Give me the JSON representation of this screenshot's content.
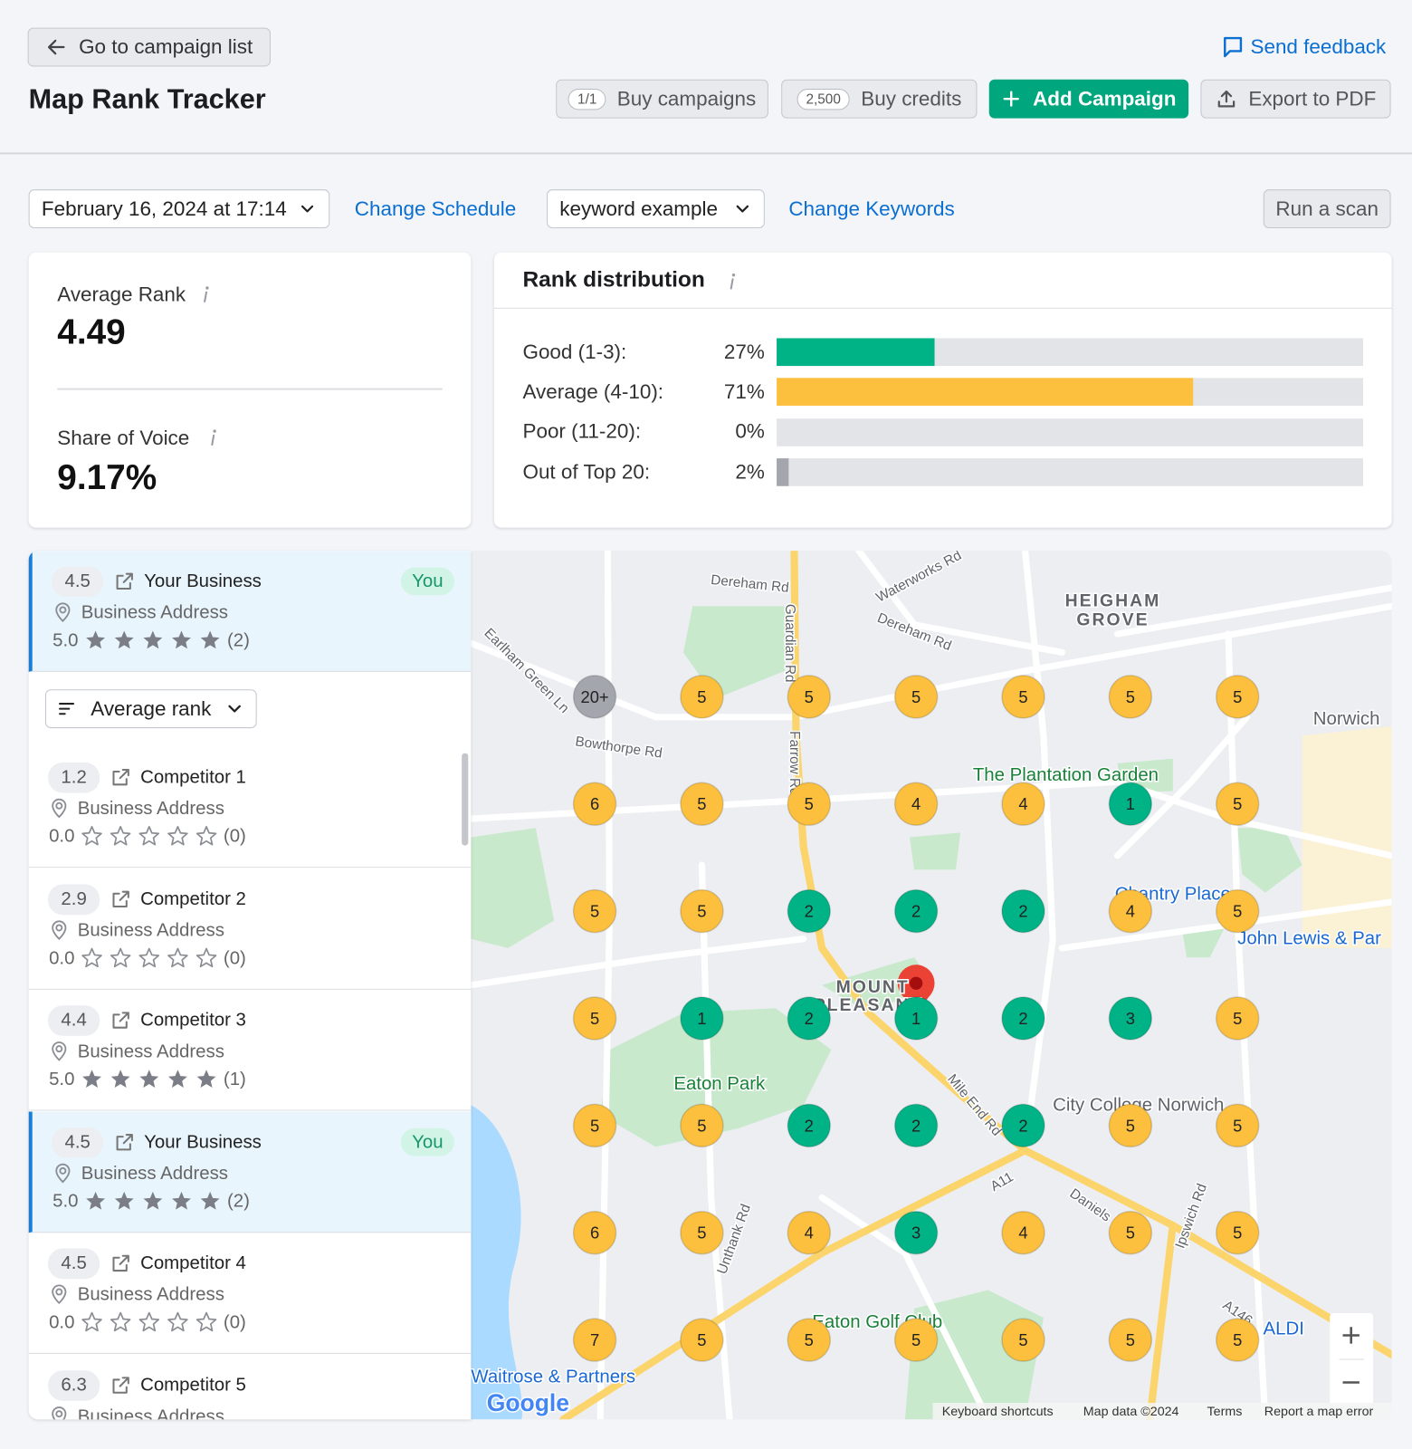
{
  "header": {
    "back_button": "Go to campaign list",
    "title": "Map Rank Tracker",
    "feedback": "Send feedback",
    "buttons": [
      {
        "badge": "1/1",
        "label": "Buy campaigns"
      },
      {
        "badge": "2,500",
        "label": "Buy credits"
      },
      {
        "label": "Add Campaign"
      },
      {
        "label": "Export to PDF"
      }
    ]
  },
  "toolbar": {
    "date": "February 16, 2024 at 17:14",
    "change_schedule": "Change Schedule",
    "keyword": "keyword example",
    "change_keywords": "Change Keywords",
    "run_scan": "Run a scan"
  },
  "summary": {
    "average_rank_label": "Average Rank",
    "average_rank": "4.49",
    "share_of_voice_label": "Share of Voice",
    "share_of_voice": "9.17%"
  },
  "rank_distribution": {
    "title": "Rank distribution",
    "xlim": [
      0,
      100
    ],
    "rows": [
      {
        "label": "Good (1-3):",
        "value": 27,
        "value_label": "27%",
        "color": "#00b386"
      },
      {
        "label": "Average (4-10):",
        "value": 71,
        "value_label": "71%",
        "color": "#fcc03e"
      },
      {
        "label": "Poor (11-20):",
        "value": 0,
        "value_label": "0%",
        "color": "#c9cbd0"
      },
      {
        "label": "Out of Top 20:",
        "value": 2,
        "value_label": "2%",
        "color": "#a3a6ad"
      }
    ]
  },
  "businesses": {
    "sort": "Average rank",
    "items": [
      {
        "rank": "4.5",
        "name": "Your Business",
        "you": "You",
        "address": "Business Address",
        "rating": "5.0",
        "reviews": "(2)"
      },
      {
        "rank": "1.2",
        "name": "Competitor 1",
        "address": "Business Address",
        "rating": "0.0",
        "reviews": "(0)"
      },
      {
        "rank": "2.9",
        "name": "Competitor 2",
        "address": "Business Address",
        "rating": "0.0",
        "reviews": "(0)"
      },
      {
        "rank": "4.4",
        "name": "Competitor 3",
        "address": "Business Address",
        "rating": "5.0",
        "reviews": "(1)"
      },
      {
        "rank": "4.5",
        "name": "Your Business",
        "you": "You",
        "address": "Business Address",
        "rating": "5.0",
        "reviews": "(2)"
      },
      {
        "rank": "4.5",
        "name": "Competitor 4",
        "address": "Business Address",
        "rating": "0.0",
        "reviews": "(0)"
      },
      {
        "rank": "6.3",
        "name": "Competitor 5",
        "address": "Business Address"
      }
    ]
  },
  "map": {
    "grid": [
      [
        "20+",
        "5",
        "5",
        "5",
        "5",
        "5",
        "5"
      ],
      [
        "6",
        "5",
        "5",
        "4",
        "4",
        "1",
        "5"
      ],
      [
        "5",
        "5",
        "2",
        "2",
        "2",
        "4",
        "5"
      ],
      [
        "5",
        "1",
        "2",
        "1",
        "2",
        "3",
        "5"
      ],
      [
        "5",
        "5",
        "2",
        "2",
        "2",
        "5",
        "5"
      ],
      [
        "6",
        "5",
        "4",
        "3",
        "4",
        "5",
        "5"
      ],
      [
        "7",
        "5",
        "5",
        "5",
        "5",
        "5",
        "5"
      ]
    ],
    "labels": [
      "Dereham Rd",
      "Waterworks Rd",
      "Dereham Rd",
      "HEIGHAM",
      "GROVE",
      "Guardian Rd",
      "Farrow Rd",
      "Earlham Green Ln",
      "Bowthorpe Rd",
      "The Plantation Garden",
      "Norwich",
      "Chantry Place",
      "John Lewis & Par",
      "Eaton Park",
      "MOUNT",
      "PLEASANT",
      "Mile End Rd",
      "City College Norwich",
      "Eaton Golf Club",
      "Waitrose & Partners",
      "Unthank Rd",
      "Ipswich Rd",
      "Daniels Rd",
      "A11",
      "A146",
      "ALDI"
    ],
    "logo": "Google",
    "footer": [
      "Keyboard shortcuts",
      "Map data ©2024",
      "Terms",
      "Report a map error"
    ]
  }
}
